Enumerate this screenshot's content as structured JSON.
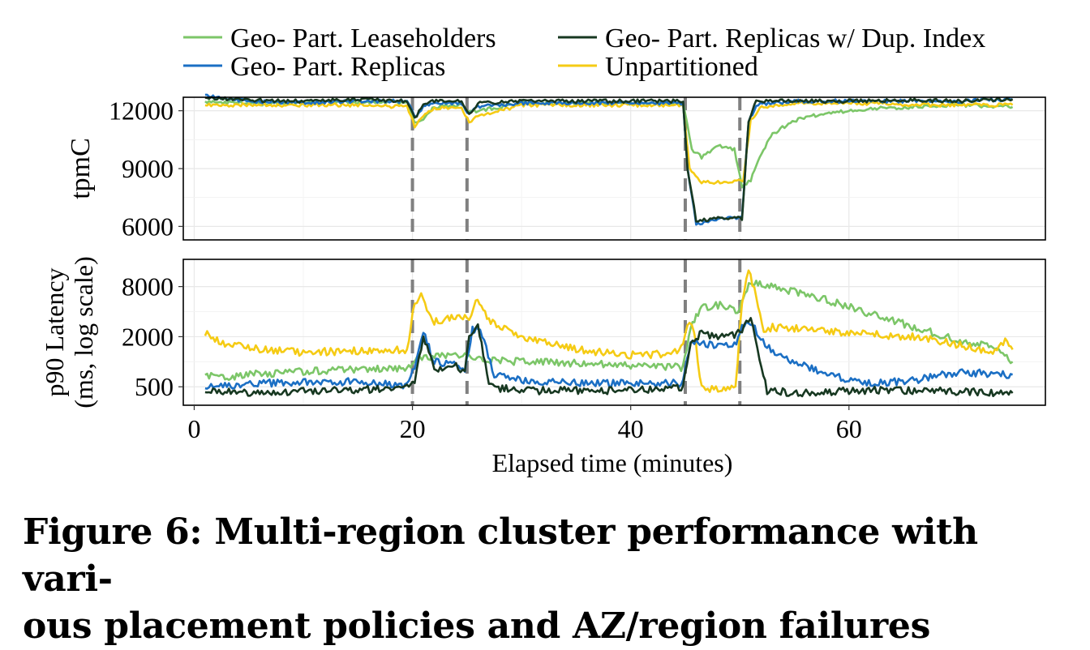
{
  "chart_data": [
    {
      "type": "line",
      "panel": "top",
      "ylabel": "tpmC",
      "xlim": [
        -1,
        78
      ],
      "ylim": [
        5300,
        12700
      ],
      "yticks": [
        6000,
        9000,
        12000
      ],
      "ytick_labels": [
        "6000",
        "9000",
        "12000"
      ],
      "grid": true,
      "failure_markers_min": [
        20,
        25,
        45,
        50
      ],
      "series": [
        {
          "name": "Geo- Part. Leaseholders",
          "color": "#7cc668",
          "x": [
            1,
            5,
            10,
            15,
            19.5,
            20.2,
            21,
            22,
            24.5,
            25,
            26,
            30,
            35,
            44.8,
            45.6,
            46.5,
            48,
            49.5,
            50.2,
            51,
            52,
            53,
            55,
            58,
            62,
            66,
            70,
            75
          ],
          "y": [
            12500,
            12350,
            12400,
            12450,
            12450,
            11400,
            11600,
            12200,
            12300,
            11900,
            12000,
            12400,
            12400,
            12400,
            10000,
            9600,
            10200,
            10000,
            8000,
            8400,
            9800,
            10800,
            11500,
            11900,
            12100,
            12200,
            12300,
            12200
          ]
        },
        {
          "name": "Geo- Part. Replicas w/ Dup. Index",
          "color": "#173821",
          "x": [
            1,
            5,
            10,
            15,
            19.5,
            20.2,
            21,
            22,
            24.5,
            25.2,
            26,
            30,
            35,
            44.8,
            45.2,
            46,
            48,
            49.5,
            50.2,
            50.8,
            51.5,
            55,
            60,
            66,
            70,
            75
          ],
          "y": [
            12700,
            12550,
            12500,
            12600,
            12500,
            11600,
            12300,
            12500,
            12500,
            11800,
            12400,
            12500,
            12500,
            12500,
            9000,
            6300,
            6400,
            6450,
            6400,
            11500,
            12500,
            12500,
            12500,
            12550,
            12500,
            12600
          ]
        },
        {
          "name": "Geo- Part. Replicas",
          "color": "#1b6fc4",
          "x": [
            1,
            5,
            10,
            15,
            19.5,
            20.2,
            21,
            22,
            24.5,
            25.2,
            26,
            30,
            35,
            44.8,
            45.2,
            46,
            48,
            49.5,
            50.2,
            50.8,
            51.5,
            55,
            60,
            66,
            70,
            75
          ],
          "y": [
            12800,
            12500,
            12400,
            12500,
            12500,
            11700,
            12200,
            12400,
            12400,
            11800,
            12200,
            12400,
            12400,
            12400,
            9000,
            6100,
            6400,
            6500,
            6400,
            11400,
            12300,
            12500,
            12500,
            12500,
            12500,
            12600
          ]
        },
        {
          "name": "Unpartitioned",
          "color": "#f5cb14",
          "x": [
            1,
            5,
            10,
            15,
            19.5,
            20.2,
            21,
            22,
            24.5,
            25.2,
            26,
            30,
            35,
            44.8,
            45.4,
            46.5,
            48,
            49.5,
            50.3,
            51,
            52,
            55,
            60,
            66,
            70,
            75
          ],
          "y": [
            12300,
            12300,
            12300,
            12300,
            12200,
            11200,
            11700,
            12100,
            12200,
            11400,
            11700,
            12300,
            12300,
            12300,
            9000,
            8300,
            8300,
            8350,
            8400,
            11500,
            12200,
            12400,
            12400,
            12300,
            12300,
            12300
          ]
        }
      ]
    },
    {
      "type": "line",
      "panel": "bottom",
      "xlabel": "Elapsed time (minutes)",
      "ylabel": "p90 Latency (ms, log scale)",
      "yscale": "log",
      "xlim": [
        -1,
        78
      ],
      "ylim": [
        300,
        17000
      ],
      "xticks": [
        0,
        20,
        40,
        60
      ],
      "xtick_labels": [
        "0",
        "20",
        "40",
        "60"
      ],
      "yticks": [
        500,
        2000,
        8000
      ],
      "ytick_labels": [
        "500",
        "2000",
        "8000"
      ],
      "grid": true,
      "failure_markers_min": [
        20,
        25,
        45,
        50
      ],
      "series": [
        {
          "name": "Geo- Part. Leaseholders",
          "color": "#7cc668",
          "x": [
            1,
            3,
            6,
            10,
            15,
            19.5,
            20.5,
            22,
            24.8,
            25.4,
            27,
            30,
            35,
            40,
            44.8,
            45.5,
            46.5,
            48,
            49.8,
            50.3,
            51,
            52,
            55,
            58,
            62,
            66,
            70,
            73,
            75
          ],
          "y": [
            700,
            650,
            720,
            760,
            800,
            850,
            1100,
            1150,
            1150,
            1100,
            1050,
            1000,
            950,
            900,
            850,
            2800,
            4500,
            4800,
            4200,
            6000,
            9000,
            8500,
            7000,
            5500,
            3800,
            2600,
            1800,
            1500,
            1000
          ]
        },
        {
          "name": "Geo- Part. Replicas w/ Dup. Index",
          "color": "#173821",
          "x": [
            1,
            3,
            6,
            10,
            15,
            19.5,
            20.2,
            21,
            22,
            24,
            24.8,
            25.2,
            26,
            27,
            30,
            35,
            40,
            44.8,
            45.5,
            46.5,
            48,
            49.5,
            50.2,
            51,
            51.8,
            52.5,
            55,
            60,
            66,
            70,
            75
          ],
          "y": [
            450,
            450,
            420,
            450,
            450,
            500,
            600,
            2000,
            800,
            900,
            700,
            2000,
            3000,
            500,
            450,
            450,
            450,
            480,
            1800,
            2200,
            2000,
            2100,
            2300,
            3500,
            1000,
            450,
            420,
            450,
            450,
            440,
            420
          ]
        },
        {
          "name": "Geo- Part. Replicas",
          "color": "#1b6fc4",
          "x": [
            1,
            3,
            6,
            10,
            15,
            19.5,
            20.2,
            21,
            22,
            24,
            24.8,
            25.5,
            26.2,
            27.5,
            30,
            35,
            40,
            44.8,
            45.5,
            46.5,
            48,
            49.5,
            50.2,
            51,
            52.5,
            55,
            58,
            62,
            66,
            70,
            75
          ],
          "y": [
            500,
            520,
            550,
            560,
            580,
            520,
            900,
            2300,
            1000,
            900,
            800,
            2500,
            2400,
            700,
            600,
            550,
            550,
            550,
            1800,
            1700,
            1500,
            1600,
            2500,
            3000,
            1500,
            1000,
            700,
            550,
            600,
            750,
            700
          ]
        },
        {
          "name": "Unpartitioned",
          "color": "#f5cb14",
          "x": [
            1,
            3,
            6,
            10,
            15,
            19.5,
            20.2,
            20.8,
            21.5,
            22,
            24.8,
            25.2,
            25.8,
            27,
            30,
            35,
            40,
            43.5,
            44.8,
            45.2,
            45.8,
            46.5,
            48,
            49.6,
            50.2,
            50.8,
            51.5,
            52.2,
            53,
            55,
            60,
            66,
            70,
            73,
            74.5,
            75
          ],
          "y": [
            2200,
            1600,
            1400,
            1300,
            1350,
            1400,
            5000,
            6500,
            3500,
            3000,
            3600,
            3000,
            5500,
            3200,
            2000,
            1400,
            1200,
            1250,
            1500,
            3000,
            2500,
            480,
            480,
            490,
            5000,
            12500,
            6000,
            2200,
            2600,
            2500,
            2200,
            2000,
            1600,
            1300,
            1800,
            1400
          ]
        }
      ]
    }
  ],
  "caption": "Figure 6: Multi-region cluster performance with vari- ous placement policies and AZ/region failures",
  "caption_lines": [
    "Figure 6: Multi-region cluster performance with vari-",
    "ous placement policies and AZ/region failures"
  ]
}
